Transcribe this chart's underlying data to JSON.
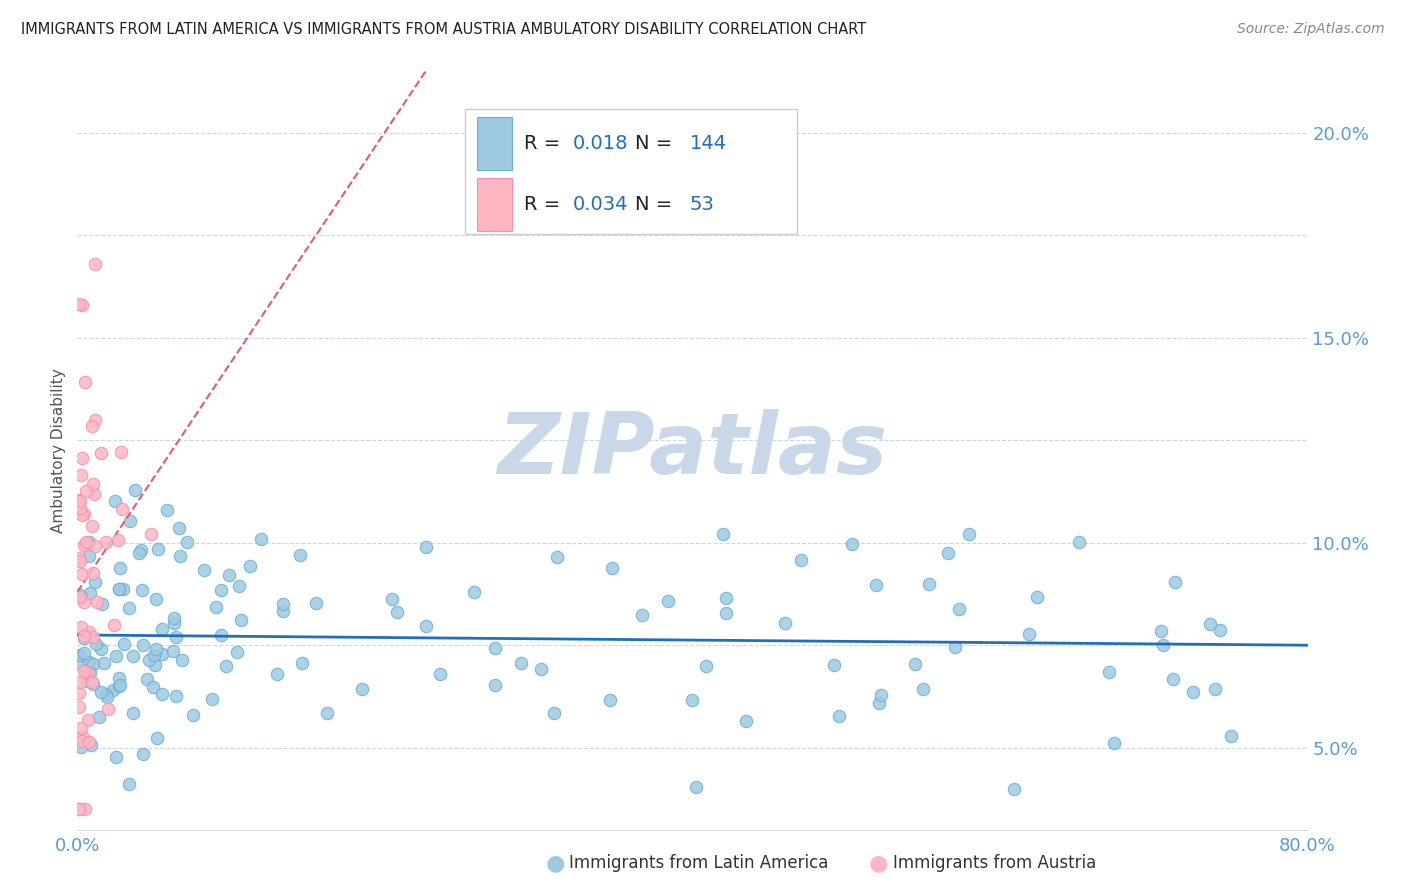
{
  "title": "IMMIGRANTS FROM LATIN AMERICA VS IMMIGRANTS FROM AUSTRIA AMBULATORY DISABILITY CORRELATION CHART",
  "source": "Source: ZipAtlas.com",
  "ylabel": "Ambulatory Disability",
  "xlim": [
    0.0,
    0.8
  ],
  "ylim": [
    0.03,
    0.215
  ],
  "ytick_vals": [
    0.05,
    0.1,
    0.15,
    0.2
  ],
  "ytick_labels": [
    "5.0%",
    "10.0%",
    "15.0%",
    "20.0%"
  ],
  "grid_ytick_vals": [
    0.05,
    0.075,
    0.1,
    0.125,
    0.15,
    0.175,
    0.2
  ],
  "series1_label": "Immigrants from Latin America",
  "series1_R": "0.018",
  "series1_N": "144",
  "series1_color": "#9ecae1",
  "series1_edge_color": "#6baed6",
  "series1_trendline_color": "#1f6fbd",
  "series2_label": "Immigrants from Austria",
  "series2_R": "0.034",
  "series2_N": "53",
  "series2_color": "#ffb6c1",
  "series2_edge_color": "#f48fb1",
  "series2_trendline_color": "#e05c6e",
  "watermark": "ZIPatlas",
  "watermark_color": "#c8d8e8",
  "title_color": "#222222",
  "source_color": "#888888",
  "axis_tick_color": "#5b9bd5",
  "legend_text_color": "#222222",
  "legend_num_color": "#1f6fbd",
  "grid_color": "#c8d8e8",
  "background_color": "#ffffff"
}
